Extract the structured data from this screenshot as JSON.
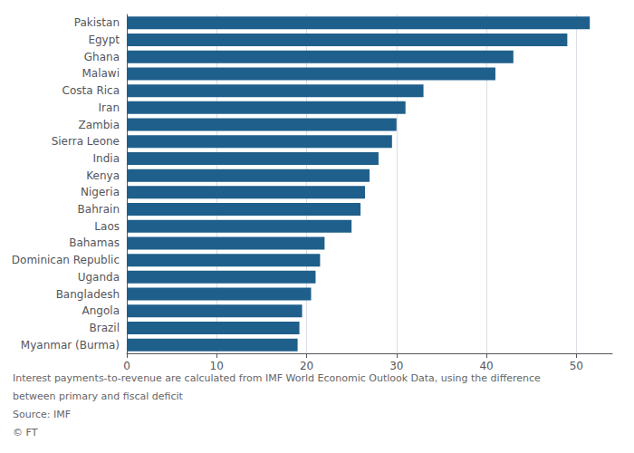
{
  "chart_data": {
    "type": "bar",
    "orientation": "horizontal",
    "categories": [
      "Pakistan",
      "Egypt",
      "Ghana",
      "Malawi",
      "Costa Rica",
      "Iran",
      "Zambia",
      "Sierra Leone",
      "India",
      "Kenya",
      "Nigeria",
      "Bahrain",
      "Laos",
      "Bahamas",
      "Dominican Republic",
      "Uganda",
      "Bangladesh",
      "Angola",
      "Brazil",
      "Myanmar (Burma)"
    ],
    "values": [
      51.5,
      49,
      43,
      41,
      33,
      31,
      30,
      29.5,
      28,
      27,
      26.5,
      26,
      25,
      22,
      21.5,
      21,
      20.5,
      19.5,
      19.2,
      19
    ],
    "color": "#1f5f8b",
    "xlim": [
      0,
      54
    ],
    "xticks": [
      0,
      10,
      20,
      30,
      40,
      50
    ],
    "grid": true,
    "annotations": [
      "Interest payments-to-revenue are calculated from IMF World Economic Outlook Data, using the difference",
      "between primary and fiscal deficit",
      "Source: IMF",
      "© FT"
    ]
  }
}
